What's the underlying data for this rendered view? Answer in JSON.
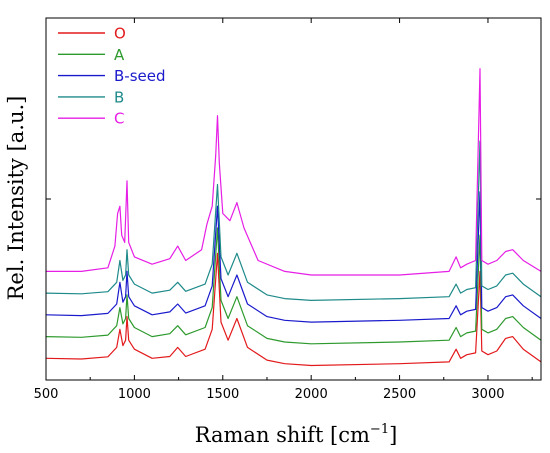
{
  "chart_data": {
    "type": "line",
    "xlabel": "Raman shift [cm",
    "xlabel_sup": "−1",
    "xlabel_end": "]",
    "ylabel": "Rel. Intensity [a.u.]",
    "xlim": [
      500,
      3300
    ],
    "ylim": [
      0,
      1
    ],
    "x_ticks": [
      500,
      1000,
      1500,
      2000,
      2500,
      3000
    ],
    "x_tick_labels": [
      "500",
      "1000",
      "1500",
      "2000",
      "2500",
      "3000"
    ],
    "y_ticks": [
      0,
      0.5,
      1
    ],
    "y_tick_labels": [
      "",
      "",
      ""
    ],
    "grid": false,
    "legend_position": "top-left",
    "series": [
      {
        "name": "O",
        "color": "#e31a1c",
        "baseline": 0.055,
        "points": [
          [
            500,
            0.06
          ],
          [
            700,
            0.058
          ],
          [
            850,
            0.064
          ],
          [
            900,
            0.09
          ],
          [
            918,
            0.14
          ],
          [
            935,
            0.095
          ],
          [
            950,
            0.11
          ],
          [
            958,
            0.175
          ],
          [
            968,
            0.11
          ],
          [
            1000,
            0.085
          ],
          [
            1100,
            0.06
          ],
          [
            1200,
            0.065
          ],
          [
            1245,
            0.09
          ],
          [
            1290,
            0.065
          ],
          [
            1400,
            0.085
          ],
          [
            1440,
            0.14
          ],
          [
            1470,
            0.35
          ],
          [
            1490,
            0.16
          ],
          [
            1530,
            0.11
          ],
          [
            1580,
            0.17
          ],
          [
            1640,
            0.09
          ],
          [
            1750,
            0.055
          ],
          [
            1850,
            0.045
          ],
          [
            2000,
            0.04
          ],
          [
            2500,
            0.045
          ],
          [
            2780,
            0.05
          ],
          [
            2820,
            0.085
          ],
          [
            2845,
            0.06
          ],
          [
            2880,
            0.07
          ],
          [
            2930,
            0.075
          ],
          [
            2955,
            0.3
          ],
          [
            2965,
            0.08
          ],
          [
            3000,
            0.07
          ],
          [
            3050,
            0.08
          ],
          [
            3100,
            0.115
          ],
          [
            3140,
            0.12
          ],
          [
            3200,
            0.085
          ],
          [
            3300,
            0.05
          ]
        ]
      },
      {
        "name": "A",
        "color": "#2e9a2e",
        "baseline": 0.12,
        "points": [
          [
            500,
            0.12
          ],
          [
            700,
            0.118
          ],
          [
            850,
            0.124
          ],
          [
            900,
            0.15
          ],
          [
            918,
            0.2
          ],
          [
            935,
            0.155
          ],
          [
            950,
            0.17
          ],
          [
            958,
            0.235
          ],
          [
            968,
            0.17
          ],
          [
            1000,
            0.145
          ],
          [
            1100,
            0.12
          ],
          [
            1200,
            0.128
          ],
          [
            1245,
            0.15
          ],
          [
            1290,
            0.125
          ],
          [
            1400,
            0.145
          ],
          [
            1440,
            0.2
          ],
          [
            1470,
            0.42
          ],
          [
            1490,
            0.22
          ],
          [
            1530,
            0.17
          ],
          [
            1580,
            0.23
          ],
          [
            1640,
            0.15
          ],
          [
            1750,
            0.115
          ],
          [
            1850,
            0.105
          ],
          [
            2000,
            0.1
          ],
          [
            2500,
            0.105
          ],
          [
            2780,
            0.11
          ],
          [
            2820,
            0.145
          ],
          [
            2845,
            0.12
          ],
          [
            2880,
            0.13
          ],
          [
            2930,
            0.135
          ],
          [
            2955,
            0.4
          ],
          [
            2965,
            0.14
          ],
          [
            3000,
            0.13
          ],
          [
            3050,
            0.14
          ],
          [
            3100,
            0.17
          ],
          [
            3140,
            0.175
          ],
          [
            3200,
            0.145
          ],
          [
            3300,
            0.11
          ]
        ]
      },
      {
        "name": "B-seed",
        "color": "#1a1acc",
        "baseline": 0.18,
        "points": [
          [
            500,
            0.18
          ],
          [
            700,
            0.178
          ],
          [
            850,
            0.184
          ],
          [
            900,
            0.21
          ],
          [
            918,
            0.27
          ],
          [
            935,
            0.215
          ],
          [
            950,
            0.23
          ],
          [
            958,
            0.3
          ],
          [
            968,
            0.23
          ],
          [
            1000,
            0.205
          ],
          [
            1100,
            0.18
          ],
          [
            1200,
            0.188
          ],
          [
            1245,
            0.21
          ],
          [
            1290,
            0.185
          ],
          [
            1400,
            0.205
          ],
          [
            1440,
            0.26
          ],
          [
            1470,
            0.48
          ],
          [
            1490,
            0.28
          ],
          [
            1530,
            0.23
          ],
          [
            1580,
            0.29
          ],
          [
            1640,
            0.21
          ],
          [
            1750,
            0.175
          ],
          [
            1850,
            0.165
          ],
          [
            2000,
            0.16
          ],
          [
            2500,
            0.165
          ],
          [
            2780,
            0.17
          ],
          [
            2820,
            0.205
          ],
          [
            2845,
            0.18
          ],
          [
            2880,
            0.19
          ],
          [
            2930,
            0.195
          ],
          [
            2955,
            0.52
          ],
          [
            2965,
            0.2
          ],
          [
            3000,
            0.19
          ],
          [
            3050,
            0.2
          ],
          [
            3100,
            0.23
          ],
          [
            3140,
            0.235
          ],
          [
            3200,
            0.205
          ],
          [
            3300,
            0.17
          ]
        ]
      },
      {
        "name": "B",
        "color": "#1f8a8a",
        "baseline": 0.24,
        "points": [
          [
            500,
            0.24
          ],
          [
            700,
            0.238
          ],
          [
            850,
            0.244
          ],
          [
            900,
            0.27
          ],
          [
            918,
            0.33
          ],
          [
            935,
            0.275
          ],
          [
            950,
            0.29
          ],
          [
            958,
            0.36
          ],
          [
            968,
            0.29
          ],
          [
            1000,
            0.265
          ],
          [
            1100,
            0.24
          ],
          [
            1200,
            0.248
          ],
          [
            1245,
            0.27
          ],
          [
            1290,
            0.245
          ],
          [
            1400,
            0.265
          ],
          [
            1440,
            0.32
          ],
          [
            1470,
            0.54
          ],
          [
            1490,
            0.34
          ],
          [
            1530,
            0.29
          ],
          [
            1580,
            0.35
          ],
          [
            1640,
            0.27
          ],
          [
            1750,
            0.235
          ],
          [
            1850,
            0.225
          ],
          [
            2000,
            0.22
          ],
          [
            2500,
            0.225
          ],
          [
            2780,
            0.23
          ],
          [
            2820,
            0.265
          ],
          [
            2845,
            0.24
          ],
          [
            2880,
            0.25
          ],
          [
            2930,
            0.255
          ],
          [
            2955,
            0.66
          ],
          [
            2965,
            0.26
          ],
          [
            3000,
            0.25
          ],
          [
            3050,
            0.26
          ],
          [
            3100,
            0.29
          ],
          [
            3140,
            0.295
          ],
          [
            3200,
            0.265
          ],
          [
            3300,
            0.23
          ]
        ]
      },
      {
        "name": "C",
        "color": "#e61ee6",
        "baseline": 0.3,
        "points": [
          [
            500,
            0.3
          ],
          [
            700,
            0.3
          ],
          [
            850,
            0.31
          ],
          [
            890,
            0.37
          ],
          [
            905,
            0.46
          ],
          [
            918,
            0.48
          ],
          [
            928,
            0.4
          ],
          [
            945,
            0.38
          ],
          [
            958,
            0.55
          ],
          [
            968,
            0.38
          ],
          [
            1000,
            0.34
          ],
          [
            1100,
            0.32
          ],
          [
            1200,
            0.335
          ],
          [
            1245,
            0.37
          ],
          [
            1290,
            0.33
          ],
          [
            1380,
            0.36
          ],
          [
            1410,
            0.43
          ],
          [
            1440,
            0.48
          ],
          [
            1460,
            0.62
          ],
          [
            1470,
            0.73
          ],
          [
            1480,
            0.6
          ],
          [
            1500,
            0.46
          ],
          [
            1540,
            0.44
          ],
          [
            1580,
            0.49
          ],
          [
            1620,
            0.42
          ],
          [
            1700,
            0.33
          ],
          [
            1850,
            0.3
          ],
          [
            2000,
            0.29
          ],
          [
            2500,
            0.29
          ],
          [
            2780,
            0.3
          ],
          [
            2820,
            0.34
          ],
          [
            2845,
            0.31
          ],
          [
            2880,
            0.32
          ],
          [
            2930,
            0.33
          ],
          [
            2955,
            0.86
          ],
          [
            2965,
            0.33
          ],
          [
            3000,
            0.32
          ],
          [
            3050,
            0.33
          ],
          [
            3100,
            0.355
          ],
          [
            3140,
            0.36
          ],
          [
            3200,
            0.33
          ],
          [
            3300,
            0.3
          ]
        ]
      }
    ]
  }
}
